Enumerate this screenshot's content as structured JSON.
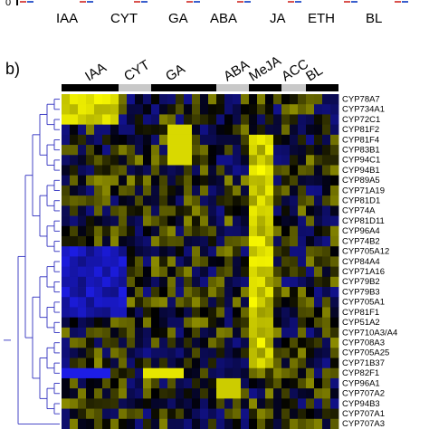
{
  "top_axis": {
    "zero": "0",
    "categories": [
      "IAA",
      "CYT",
      "GA",
      "ABA",
      "JA",
      "ETH",
      "BL"
    ]
  },
  "panel_label": "b)",
  "chart_data": {
    "type": "heatmap",
    "column_groups": [
      {
        "label": "IAA",
        "bar": "black"
      },
      {
        "label": "CYT",
        "bar": "lightgray"
      },
      {
        "label": "GA",
        "bar": "black"
      },
      {
        "label": "ABA",
        "bar": "lightgray"
      },
      {
        "label": "MeJA",
        "bar": "black"
      },
      {
        "label": "ACC",
        "bar": "lightgray"
      },
      {
        "label": "BL",
        "bar": "black"
      }
    ],
    "rows": [
      "CYP78A7",
      "CYP734A1",
      "CYP72C1",
      "CYP81F2",
      "CYP81F4",
      "CYP83B1",
      "CYP94C1",
      "CYP94B1",
      "CYP89A5",
      "CYP71A19",
      "CYP81D1",
      "CYP74A",
      "CYP81D11",
      "CYP96A4",
      "CYP74B2",
      "CYP705A12",
      "CYP84A4",
      "CYP71A16",
      "CYP79B2",
      "CYP79B3",
      "CYP705A1",
      "CYP81F1",
      "CYP51A2",
      "CYP710A3/A4",
      "CYP708A3",
      "CYP705A25",
      "CYP71B37",
      "CYP82F1",
      "CYP96A1",
      "CYP707A2",
      "CYP94B3",
      "CYP707A1",
      "CYP707A3"
    ],
    "colors": {
      "up": "#ffff00",
      "down": "#2020ff",
      "neutral": "#000000",
      "dendrogram": "#3030c0"
    }
  }
}
